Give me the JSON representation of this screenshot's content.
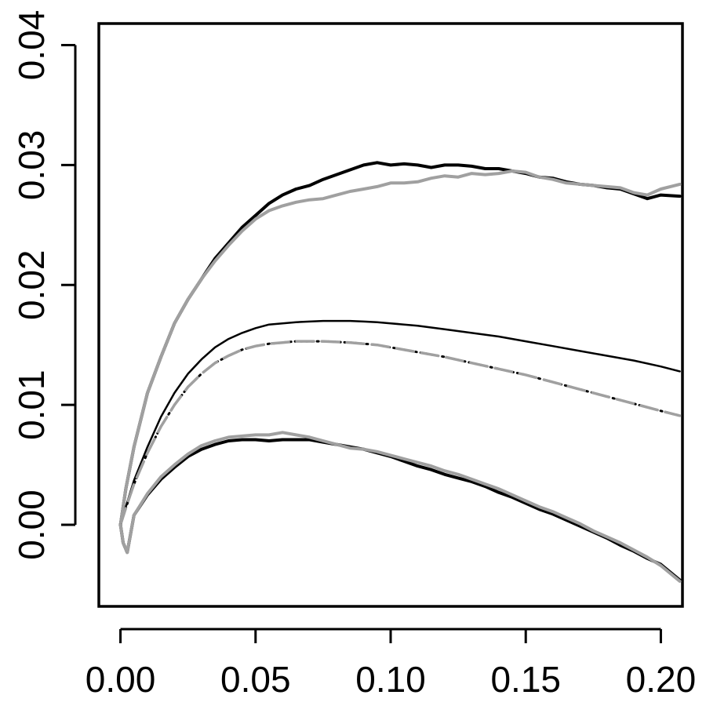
{
  "chart_data": {
    "type": "line",
    "title": "",
    "xlabel": "",
    "ylabel": "",
    "xlim": [
      -0.008,
      0.208
    ],
    "ylim": [
      -0.0068,
      0.0418
    ],
    "x_ticks": [
      0.0,
      0.05,
      0.1,
      0.15,
      0.2
    ],
    "x_tick_labels": [
      "0.00",
      "0.05",
      "0.10",
      "0.15",
      "0.20"
    ],
    "y_ticks": [
      0.0,
      0.01,
      0.02,
      0.03,
      0.04
    ],
    "y_tick_labels": [
      "0.00",
      "0.01",
      "0.02",
      "0.03",
      "0.04"
    ],
    "grid": false,
    "legend": "none",
    "colors": {
      "black": "#000000",
      "gray": "#a0a0a0",
      "dark_gray": "#555555"
    },
    "series": [
      {
        "style": "thick-black-noisy",
        "x": [
          0.0,
          0.002,
          0.005,
          0.01,
          0.015,
          0.02,
          0.025,
          0.03,
          0.035,
          0.04,
          0.045,
          0.05,
          0.055,
          0.06,
          0.065,
          0.07,
          0.075,
          0.08,
          0.085,
          0.09,
          0.095,
          0.1,
          0.105,
          0.11,
          0.115,
          0.12,
          0.125,
          0.13,
          0.135,
          0.14,
          0.145,
          0.15,
          0.155,
          0.16,
          0.165,
          0.17,
          0.175,
          0.18,
          0.185,
          0.19,
          0.195,
          0.2,
          0.207
        ],
        "y": [
          0.0,
          0.003,
          0.0065,
          0.011,
          0.014,
          0.0168,
          0.0188,
          0.0205,
          0.0222,
          0.0235,
          0.0248,
          0.0258,
          0.0268,
          0.0275,
          0.028,
          0.0283,
          0.0288,
          0.0292,
          0.0296,
          0.03,
          0.0302,
          0.03,
          0.0301,
          0.03,
          0.0298,
          0.03,
          0.03,
          0.0299,
          0.0297,
          0.0297,
          0.0295,
          0.0293,
          0.029,
          0.0289,
          0.0286,
          0.0284,
          0.0283,
          0.0281,
          0.028,
          0.0276,
          0.0272,
          0.0275,
          0.0274
        ]
      },
      {
        "style": "thick-gray-noisy",
        "x": [
          0.0,
          0.002,
          0.005,
          0.01,
          0.015,
          0.02,
          0.025,
          0.03,
          0.035,
          0.04,
          0.045,
          0.05,
          0.055,
          0.06,
          0.065,
          0.07,
          0.075,
          0.08,
          0.085,
          0.09,
          0.095,
          0.1,
          0.105,
          0.11,
          0.115,
          0.12,
          0.125,
          0.13,
          0.135,
          0.14,
          0.145,
          0.15,
          0.155,
          0.16,
          0.165,
          0.17,
          0.175,
          0.18,
          0.185,
          0.19,
          0.195,
          0.2,
          0.207
        ],
        "y": [
          0.0,
          0.003,
          0.0065,
          0.011,
          0.014,
          0.0168,
          0.0188,
          0.0205,
          0.022,
          0.0233,
          0.0245,
          0.0255,
          0.0262,
          0.0266,
          0.0269,
          0.0271,
          0.0272,
          0.0275,
          0.0278,
          0.028,
          0.0282,
          0.0285,
          0.0285,
          0.0286,
          0.0289,
          0.0291,
          0.029,
          0.0293,
          0.0292,
          0.0293,
          0.0295,
          0.0294,
          0.029,
          0.0288,
          0.0285,
          0.0284,
          0.0283,
          0.0282,
          0.0281,
          0.0277,
          0.0275,
          0.028,
          0.0284
        ]
      },
      {
        "style": "thin-black-smooth",
        "x": [
          0.0,
          0.002,
          0.005,
          0.01,
          0.015,
          0.02,
          0.025,
          0.03,
          0.035,
          0.04,
          0.045,
          0.05,
          0.055,
          0.06,
          0.065,
          0.07,
          0.075,
          0.08,
          0.085,
          0.09,
          0.095,
          0.1,
          0.11,
          0.12,
          0.13,
          0.14,
          0.15,
          0.16,
          0.17,
          0.18,
          0.19,
          0.2,
          0.207
        ],
        "y": [
          0.0,
          0.0015,
          0.0037,
          0.0065,
          0.009,
          0.011,
          0.0126,
          0.0138,
          0.0148,
          0.0155,
          0.016,
          0.0164,
          0.0167,
          0.0168,
          0.0169,
          0.01695,
          0.017,
          0.017,
          0.017,
          0.01695,
          0.0169,
          0.0168,
          0.0166,
          0.0163,
          0.016,
          0.0157,
          0.0153,
          0.0149,
          0.0145,
          0.0141,
          0.0137,
          0.0132,
          0.0128
        ]
      },
      {
        "style": "dotted-black-smooth",
        "x": [
          0.0,
          0.002,
          0.005,
          0.01,
          0.015,
          0.02,
          0.025,
          0.03,
          0.035,
          0.04,
          0.045,
          0.05,
          0.055,
          0.06,
          0.065,
          0.07,
          0.075,
          0.08,
          0.085,
          0.09,
          0.095,
          0.1,
          0.11,
          0.12,
          0.13,
          0.14,
          0.15,
          0.16,
          0.17,
          0.18,
          0.19,
          0.2,
          0.207
        ],
        "y": [
          0.0,
          0.0014,
          0.0034,
          0.006,
          0.0082,
          0.01,
          0.0115,
          0.0126,
          0.0135,
          0.0141,
          0.0146,
          0.0149,
          0.0151,
          0.0152,
          0.0153,
          0.0153,
          0.0153,
          0.01525,
          0.0152,
          0.0151,
          0.015,
          0.0148,
          0.0144,
          0.014,
          0.0135,
          0.013,
          0.0125,
          0.0119,
          0.0113,
          0.0107,
          0.0101,
          0.0095,
          0.0091
        ]
      },
      {
        "style": "dashed-gray-smooth",
        "x": [
          0.0,
          0.002,
          0.005,
          0.01,
          0.015,
          0.02,
          0.025,
          0.03,
          0.035,
          0.04,
          0.045,
          0.05,
          0.055,
          0.06,
          0.065,
          0.07,
          0.075,
          0.08,
          0.085,
          0.09,
          0.095,
          0.1,
          0.11,
          0.12,
          0.13,
          0.14,
          0.15,
          0.16,
          0.17,
          0.18,
          0.19,
          0.2,
          0.207
        ],
        "y": [
          0.0,
          0.0014,
          0.0034,
          0.006,
          0.0082,
          0.01,
          0.0115,
          0.0126,
          0.0135,
          0.0141,
          0.0146,
          0.0149,
          0.0151,
          0.0152,
          0.0153,
          0.0153,
          0.0153,
          0.01525,
          0.0152,
          0.0151,
          0.015,
          0.0148,
          0.0144,
          0.014,
          0.0135,
          0.013,
          0.0125,
          0.0119,
          0.0113,
          0.0107,
          0.0101,
          0.0095,
          0.0091
        ]
      },
      {
        "style": "thick-black-noisy",
        "x": [
          0.0,
          0.001,
          0.0025,
          0.005,
          0.01,
          0.015,
          0.02,
          0.025,
          0.03,
          0.035,
          0.04,
          0.045,
          0.05,
          0.055,
          0.06,
          0.065,
          0.07,
          0.075,
          0.08,
          0.085,
          0.09,
          0.095,
          0.1,
          0.105,
          0.11,
          0.115,
          0.12,
          0.125,
          0.13,
          0.135,
          0.14,
          0.145,
          0.15,
          0.155,
          0.16,
          0.165,
          0.17,
          0.175,
          0.18,
          0.185,
          0.19,
          0.195,
          0.2,
          0.207
        ],
        "y": [
          0.0,
          -0.0015,
          -0.0023,
          0.0008,
          0.0025,
          0.0038,
          0.0048,
          0.0057,
          0.0063,
          0.0067,
          0.007,
          0.0071,
          0.0071,
          0.007,
          0.0071,
          0.0071,
          0.0071,
          0.0069,
          0.0067,
          0.0065,
          0.0063,
          0.006,
          0.0057,
          0.0053,
          0.0049,
          0.0046,
          0.0042,
          0.0039,
          0.0036,
          0.0032,
          0.0027,
          0.0023,
          0.0018,
          0.0013,
          0.0009,
          0.0004,
          -0.0001,
          -0.0006,
          -0.0011,
          -0.0017,
          -0.0022,
          -0.0028,
          -0.0033,
          -0.0046
        ]
      },
      {
        "style": "thick-gray-noisy",
        "x": [
          0.0,
          0.001,
          0.0025,
          0.005,
          0.01,
          0.015,
          0.02,
          0.025,
          0.03,
          0.035,
          0.04,
          0.045,
          0.05,
          0.055,
          0.06,
          0.065,
          0.07,
          0.075,
          0.08,
          0.085,
          0.09,
          0.095,
          0.1,
          0.105,
          0.11,
          0.115,
          0.12,
          0.125,
          0.13,
          0.135,
          0.14,
          0.145,
          0.15,
          0.155,
          0.16,
          0.165,
          0.17,
          0.175,
          0.18,
          0.185,
          0.19,
          0.195,
          0.2,
          0.207
        ],
        "y": [
          0.0,
          -0.0015,
          -0.0023,
          0.0008,
          0.0026,
          0.004,
          0.005,
          0.0059,
          0.0066,
          0.007,
          0.0073,
          0.0074,
          0.0075,
          0.0075,
          0.0077,
          0.0075,
          0.0073,
          0.007,
          0.0067,
          0.0064,
          0.0063,
          0.0061,
          0.0058,
          0.0055,
          0.0052,
          0.0049,
          0.0045,
          0.0042,
          0.0038,
          0.0034,
          0.003,
          0.0025,
          0.002,
          0.0015,
          0.0011,
          0.0006,
          0.0001,
          -0.0005,
          -0.001,
          -0.0015,
          -0.0021,
          -0.0027,
          -0.0034,
          -0.0047
        ]
      }
    ]
  }
}
